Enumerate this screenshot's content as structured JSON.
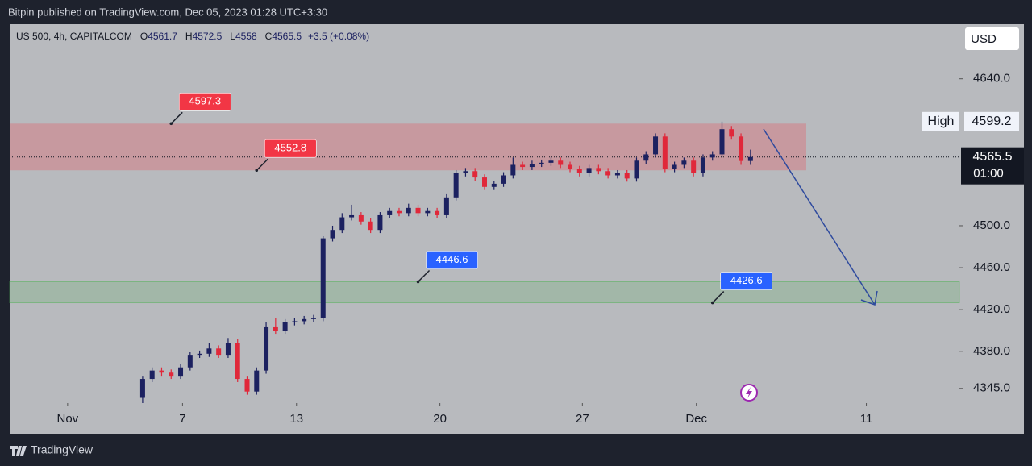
{
  "header": {
    "publisher": "Bitpin published on TradingView.com, Dec 05, 2023 01:28 UTC+3:30",
    "brand": "TradingView"
  },
  "chart_data": {
    "type": "candlestick",
    "symbol": "US 500, 4h, CAPITALCOM",
    "legend_ohlc": [
      {
        "label": "O",
        "value": 4561.7
      },
      {
        "label": "H",
        "value": 4572.5
      },
      {
        "label": "L",
        "value": 4558.0
      },
      {
        "label": "C",
        "value": 4565.5
      }
    ],
    "change": "+3.5 (+0.08%)",
    "currency": "USD",
    "high_label": "High",
    "high_value": 4599.2,
    "last_price": 4565.5,
    "countdown": "01:00",
    "up_color": "#1c2160",
    "down_color": "#e0283a",
    "x": [
      14,
      15,
      16,
      17,
      18,
      19,
      20,
      21,
      22,
      23,
      24,
      25,
      26,
      27,
      28,
      29,
      30,
      31,
      32,
      33,
      34,
      35,
      36,
      37,
      38,
      39,
      40,
      41,
      42,
      43,
      44,
      45,
      46,
      47,
      48,
      49,
      50,
      51,
      52,
      53,
      54,
      55,
      56,
      57,
      58,
      59,
      60,
      61,
      62,
      63,
      64,
      65,
      66,
      67,
      68,
      69,
      70,
      71,
      72,
      73,
      74,
      75,
      76,
      77,
      78
    ],
    "open": [
      4336,
      4354,
      4362,
      4360,
      4357,
      4365,
      4377,
      4378,
      4383,
      4377,
      4388,
      4354,
      4342,
      4362,
      4404,
      4400,
      4408,
      4409,
      4411,
      4412,
      4488,
      4496,
      4508,
      4510,
      4504,
      4496,
      4510,
      4514,
      4512,
      4517,
      4512,
      4514,
      4510,
      4527,
      4550,
      4552,
      4546,
      4537,
      4540,
      4548,
      4558,
      4556,
      4559,
      4560,
      4562,
      4558,
      4554,
      4550,
      4555,
      4552,
      4548,
      4550,
      4545,
      4562,
      4568,
      4585,
      4554,
      4558,
      4562,
      4550,
      4565,
      4568,
      4592,
      4585,
      4561.7
    ],
    "high": [
      4357,
      4365,
      4365,
      4363,
      4368,
      4380,
      4381,
      4388,
      4386,
      4393,
      4392,
      4357,
      4365,
      4408,
      4412,
      4411,
      4412,
      4414,
      4415,
      4490,
      4500,
      4512,
      4520,
      4513,
      4507,
      4513,
      4517,
      4517,
      4521,
      4520,
      4517,
      4517,
      4530,
      4553,
      4555,
      4555,
      4549,
      4543,
      4551,
      4565,
      4561,
      4562,
      4563,
      4565,
      4565,
      4561,
      4557,
      4558,
      4558,
      4555,
      4553,
      4553,
      4565,
      4571,
      4588,
      4588,
      4561,
      4565,
      4565,
      4568,
      4571,
      4599.2,
      4595,
      4588,
      4572.5
    ],
    "low": [
      4331,
      4351,
      4357,
      4354,
      4354,
      4362,
      4374,
      4375,
      4374,
      4374,
      4351,
      4339,
      4339,
      4359,
      4397,
      4397,
      4405,
      4406,
      4408,
      4409,
      4485,
      4493,
      4505,
      4501,
      4493,
      4493,
      4507,
      4509,
      4509,
      4509,
      4509,
      4507,
      4507,
      4524,
      4547,
      4543,
      4534,
      4534,
      4537,
      4545,
      4553,
      4553,
      4556,
      4557,
      4555,
      4551,
      4547,
      4547,
      4549,
      4545,
      4545,
      4542,
      4542,
      4559,
      4565,
      4551,
      4551,
      4555,
      4547,
      4547,
      4562,
      4565,
      4582,
      4558,
      4558.0
    ],
    "close": [
      4354,
      4362,
      4360,
      4357,
      4365,
      4377,
      4378,
      4383,
      4377,
      4388,
      4354,
      4342,
      4362,
      4404,
      4400,
      4408,
      4409,
      4411,
      4412,
      4488,
      4496,
      4508,
      4510,
      4504,
      4496,
      4510,
      4514,
      4512,
      4517,
      4512,
      4514,
      4510,
      4527,
      4550,
      4552,
      4546,
      4537,
      4540,
      4548,
      4558,
      4556,
      4559,
      4560,
      4562,
      4558,
      4554,
      4550,
      4555,
      4552,
      4548,
      4550,
      4545,
      4562,
      4568,
      4585,
      4554,
      4558,
      4562,
      4550,
      4565,
      4568,
      4592,
      4585,
      4561.7,
      4565.5
    ],
    "xlim": [
      0,
      100
    ],
    "ylim": [
      4331,
      4692
    ],
    "xticks": [
      {
        "value": 6.1,
        "label": "Nov"
      },
      {
        "value": 18.2,
        "label": "7"
      },
      {
        "value": 30.2,
        "label": "13"
      },
      {
        "value": 45.3,
        "label": "20"
      },
      {
        "value": 60.3,
        "label": "27"
      },
      {
        "value": 72.3,
        "label": "Dec"
      },
      {
        "value": 90.2,
        "label": "11"
      }
    ],
    "yticks": [
      {
        "value": 4640,
        "label": "4640.0"
      },
      {
        "value": 4500,
        "label": "4500.0"
      },
      {
        "value": 4460,
        "label": "4460.0"
      },
      {
        "value": 4420,
        "label": "4420.0"
      },
      {
        "value": 4380,
        "label": "4380.0"
      },
      {
        "value": 4345,
        "label": "4345.0"
      }
    ],
    "annotations": [
      {
        "value": 4597.3,
        "color": "#f23645",
        "x": 17
      },
      {
        "value": 4552.8,
        "color": "#f23645",
        "x": 26
      },
      {
        "value": 4446.6,
        "color": "#2962ff",
        "x": 43
      },
      {
        "value": 4426.6,
        "color": "#2962ff",
        "x": 74
      }
    ]
  }
}
